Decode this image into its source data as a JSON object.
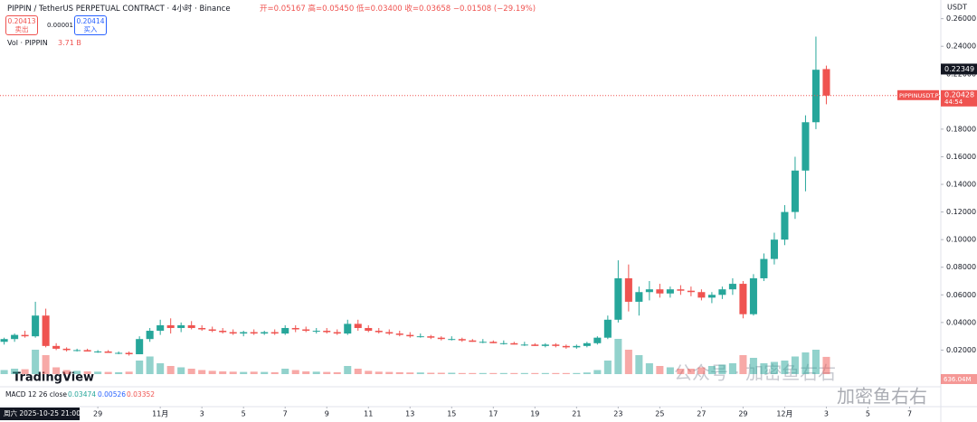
{
  "chart_data": {
    "type": "candlestick",
    "open": [
      0.026,
      0.028,
      0.031,
      0.03,
      0.045,
      0.023,
      0.021,
      0.02,
      0.02,
      0.019,
      0.019,
      0.018,
      0.018,
      0.017,
      0.028,
      0.034,
      0.038,
      0.036,
      0.038,
      0.036,
      0.035,
      0.034,
      0.033,
      0.032,
      0.033,
      0.032,
      0.033,
      0.032,
      0.036,
      0.035,
      0.034,
      0.034,
      0.033,
      0.032,
      0.039,
      0.036,
      0.034,
      0.033,
      0.032,
      0.031,
      0.03,
      0.03,
      0.029,
      0.028,
      0.028,
      0.027,
      0.026,
      0.026,
      0.025,
      0.025,
      0.024,
      0.024,
      0.023,
      0.024,
      0.023,
      0.022,
      0.023,
      0.025,
      0.029,
      0.042,
      0.072,
      0.055,
      0.062,
      0.064,
      0.061,
      0.064,
      0.063,
      0.062,
      0.058,
      0.06,
      0.064,
      0.068,
      0.046,
      0.072,
      0.086,
      0.1,
      0.12,
      0.15,
      0.185,
      0.22349
    ],
    "high": [
      0.029,
      0.032,
      0.034,
      0.055,
      0.05,
      0.025,
      0.022,
      0.021,
      0.021,
      0.02,
      0.02,
      0.019,
      0.019,
      0.03,
      0.036,
      0.042,
      0.043,
      0.04,
      0.041,
      0.038,
      0.037,
      0.036,
      0.035,
      0.034,
      0.035,
      0.034,
      0.035,
      0.038,
      0.038,
      0.037,
      0.036,
      0.036,
      0.035,
      0.042,
      0.042,
      0.038,
      0.036,
      0.035,
      0.034,
      0.033,
      0.032,
      0.031,
      0.03,
      0.03,
      0.029,
      0.028,
      0.028,
      0.027,
      0.027,
      0.026,
      0.026,
      0.025,
      0.025,
      0.025,
      0.024,
      0.024,
      0.026,
      0.03,
      0.045,
      0.085,
      0.082,
      0.066,
      0.07,
      0.068,
      0.066,
      0.067,
      0.066,
      0.064,
      0.062,
      0.066,
      0.072,
      0.07,
      0.075,
      0.09,
      0.105,
      0.125,
      0.16,
      0.19,
      0.247,
      0.226
    ],
    "low": [
      0.024,
      0.026,
      0.029,
      0.029,
      0.022,
      0.02,
      0.019,
      0.019,
      0.019,
      0.018,
      0.018,
      0.017,
      0.016,
      0.017,
      0.026,
      0.031,
      0.032,
      0.033,
      0.035,
      0.034,
      0.033,
      0.032,
      0.031,
      0.03,
      0.031,
      0.031,
      0.031,
      0.031,
      0.033,
      0.033,
      0.032,
      0.032,
      0.031,
      0.031,
      0.034,
      0.033,
      0.032,
      0.031,
      0.03,
      0.029,
      0.029,
      0.028,
      0.027,
      0.027,
      0.026,
      0.026,
      0.025,
      0.025,
      0.024,
      0.024,
      0.023,
      0.023,
      0.022,
      0.022,
      0.021,
      0.021,
      0.022,
      0.024,
      0.028,
      0.04,
      0.048,
      0.045,
      0.056,
      0.058,
      0.058,
      0.06,
      0.059,
      0.056,
      0.054,
      0.057,
      0.06,
      0.043,
      0.045,
      0.07,
      0.082,
      0.096,
      0.115,
      0.135,
      0.18,
      0.198
    ],
    "close": [
      0.028,
      0.031,
      0.03,
      0.045,
      0.023,
      0.021,
      0.02,
      0.02,
      0.019,
      0.019,
      0.018,
      0.018,
      0.017,
      0.028,
      0.034,
      0.038,
      0.036,
      0.038,
      0.036,
      0.035,
      0.034,
      0.033,
      0.032,
      0.033,
      0.032,
      0.033,
      0.032,
      0.036,
      0.035,
      0.034,
      0.034,
      0.033,
      0.032,
      0.039,
      0.036,
      0.034,
      0.033,
      0.032,
      0.031,
      0.03,
      0.03,
      0.029,
      0.028,
      0.028,
      0.027,
      0.026,
      0.026,
      0.025,
      0.025,
      0.024,
      0.024,
      0.023,
      0.024,
      0.023,
      0.022,
      0.023,
      0.025,
      0.029,
      0.042,
      0.072,
      0.055,
      0.062,
      0.064,
      0.061,
      0.064,
      0.063,
      0.062,
      0.058,
      0.06,
      0.064,
      0.068,
      0.046,
      0.072,
      0.086,
      0.1,
      0.12,
      0.15,
      0.185,
      0.223,
      0.20428
    ],
    "volume": [
      150,
      200,
      180,
      900,
      700,
      250,
      150,
      120,
      100,
      90,
      80,
      70,
      90,
      500,
      650,
      400,
      300,
      250,
      200,
      150,
      120,
      100,
      90,
      80,
      90,
      80,
      70,
      200,
      150,
      100,
      90,
      80,
      70,
      300,
      200,
      120,
      90,
      80,
      70,
      60,
      60,
      50,
      50,
      50,
      40,
      40,
      40,
      40,
      40,
      40,
      40,
      40,
      40,
      40,
      40,
      40,
      60,
      150,
      500,
      1300,
      900,
      700,
      400,
      300,
      250,
      200,
      200,
      250,
      300,
      350,
      400,
      700,
      600,
      400,
      450,
      500,
      650,
      800,
      900,
      636.04
    ],
    "up_color": "#26a69a",
    "down_color": "#ef5350",
    "xlim": [
      -0.4,
      90
    ],
    "xticks": [
      {
        "value": 9,
        "label": "29"
      },
      {
        "value": 15,
        "label": "11月"
      },
      {
        "value": 19,
        "label": "3"
      },
      {
        "value": 23,
        "label": "5"
      },
      {
        "value": 27,
        "label": "7"
      },
      {
        "value": 31,
        "label": "9"
      },
      {
        "value": 35,
        "label": "11"
      },
      {
        "value": 39,
        "label": "13"
      },
      {
        "value": 43,
        "label": "15"
      },
      {
        "value": 47,
        "label": "17"
      },
      {
        "value": 51,
        "label": "19"
      },
      {
        "value": 55,
        "label": "21"
      },
      {
        "value": 59,
        "label": "23"
      },
      {
        "value": 63,
        "label": "25"
      },
      {
        "value": 67,
        "label": "27"
      },
      {
        "value": 71,
        "label": "29"
      },
      {
        "value": 75,
        "label": "12月"
      },
      {
        "value": 79,
        "label": "3"
      },
      {
        "value": 83,
        "label": "5"
      },
      {
        "value": 87,
        "label": "7"
      }
    ],
    "ylim": [
      0,
      0.265
    ],
    "yticks": [
      {
        "value": 0.02,
        "label": "0.02000"
      },
      {
        "value": 0.04,
        "label": "0.04000"
      },
      {
        "value": 0.06,
        "label": "0.06000"
      },
      {
        "value": 0.08,
        "label": "0.08000"
      },
      {
        "value": 0.1,
        "label": "0.10000"
      },
      {
        "value": 0.12,
        "label": "0.12000"
      },
      {
        "value": 0.14,
        "label": "0.14000"
      },
      {
        "value": 0.16,
        "label": "0.16000"
      },
      {
        "value": 0.18,
        "label": "0.18000"
      },
      {
        "value": 0.2,
        "label": "0.20000"
      },
      {
        "value": 0.22,
        "label": "0.22000"
      },
      {
        "value": 0.24,
        "label": "0.24000"
      },
      {
        "value": 0.26,
        "label": "0.26000"
      }
    ],
    "volume_ylim": [
      0,
      4000
    ],
    "grid": false,
    "last_price_label": "0.20428",
    "last_symbol": "PIPPINUSDT.P",
    "countdown": "44:54",
    "marker_label": "0.22349",
    "volume_label": "636.04M",
    "axis_unit": "USDT",
    "cursor_time": "周六 2025-10-25 21:00"
  },
  "ui": {
    "symbol": "PIPPIN / TetherUS PERPETUAL CONTRACT · 4小时 · Binance",
    "ohlc": "开=0.05167 高=0.05450 低=0.03400 收=0.03658 −0.01508 (−29.19%)",
    "sell_price": "0.20413",
    "sell": "卖出",
    "spread": "0.00001",
    "buy_price": "0.20414",
    "buy": "买入",
    "vol_title": "Vol · PIPPIN",
    "vol_value": "3.71 B",
    "macd": "MACD 12 26 close",
    "macd_1": "0.03474",
    "macd_2": "0.00526",
    "macd_3": "0.03352",
    "logo": "TradingView",
    "wm1": "公众号 · 加密鱼右右",
    "wm2": "加密鱼右右"
  }
}
